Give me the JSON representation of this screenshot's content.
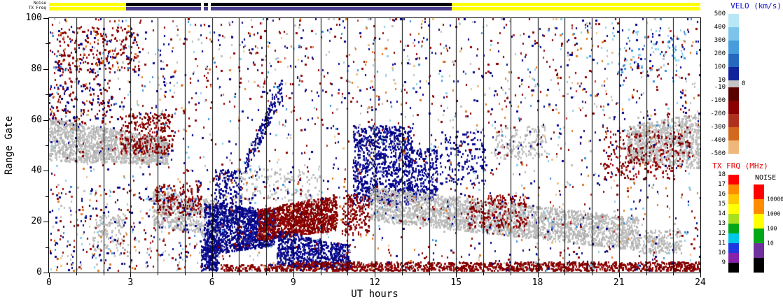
{
  "strip_labels": {
    "noise": "Noise",
    "tx_freq": "TX Freq"
  },
  "axes": {
    "xlabel": "UT hours",
    "ylabel": "Range Gate",
    "x_ticks": [
      "0",
      "3",
      "6",
      "9",
      "12",
      "15",
      "18",
      "21",
      "24"
    ],
    "y_ticks": [
      "0",
      "20",
      "40",
      "60",
      "80",
      "100"
    ]
  },
  "velocity_bar": {
    "title": "VELO (km/s)",
    "title_color": "#1010D0",
    "labels": [
      "500",
      "400",
      "300",
      "200",
      "100",
      "10",
      "-10",
      "-100",
      "-200",
      "-300",
      "-400",
      "-500"
    ],
    "zero_label": "0",
    "grey_index": 5,
    "colors": [
      "#B8E8F5",
      "#7CC4EC",
      "#479CDC",
      "#2468C0",
      "#10239B",
      "#C4C4C4",
      "#5A0000",
      "#8B0000",
      "#B03020",
      "#D2691E",
      "#EFB87A"
    ]
  },
  "freq_bar": {
    "title": "TX FRQ (MHz)",
    "title_color": "#E00000",
    "labels": [
      "18",
      "17",
      "16",
      "15",
      "14",
      "13",
      "12",
      "11",
      "10",
      "9"
    ],
    "colors": [
      "#FF0000",
      "#FF8C00",
      "#FFC800",
      "#FFFF00",
      "#A8E020",
      "#00A818",
      "#00C8E8",
      "#2038E0",
      "#8822AA",
      "#000000"
    ]
  },
  "noise_bar": {
    "title": "NOISE",
    "labels": [
      "10000",
      "1000",
      "100",
      "10"
    ],
    "colors": [
      "#FF0000",
      "#FF8C00",
      "#FFFF00",
      "#00A818",
      "#7030A0",
      "#000000"
    ]
  },
  "chart_data": {
    "type": "scatter",
    "title": "",
    "xlabel": "UT hours",
    "ylabel": "Range Gate",
    "xlim": [
      0,
      24
    ],
    "ylim": [
      0,
      100
    ],
    "x_ticks": [
      0,
      3,
      6,
      9,
      12,
      15,
      18,
      21,
      24
    ],
    "y_ticks": [
      0,
      20,
      40,
      60,
      80,
      100
    ],
    "hour_lines": [
      1,
      2,
      3,
      4,
      5,
      6,
      7,
      8,
      9,
      10,
      11,
      12,
      13,
      14,
      15,
      16,
      17,
      18,
      19,
      20,
      21,
      22,
      23
    ],
    "strips": {
      "noise": [
        {
          "t": [
            0,
            2.85
          ],
          "color": "#FFFF00"
        },
        {
          "t": [
            2.85,
            5.6
          ],
          "color": "#000000"
        },
        {
          "t": [
            5.7,
            5.85
          ],
          "color": "#000000"
        },
        {
          "t": [
            5.95,
            14.85
          ],
          "color": "#000000"
        },
        {
          "t": [
            14.85,
            24
          ],
          "color": "#FFFF00"
        }
      ],
      "tx_freq": [
        {
          "t": [
            0,
            2.85
          ],
          "color": "#FFFF00"
        },
        {
          "t": [
            2.85,
            5.6
          ],
          "color": "#4A3B8F"
        },
        {
          "t": [
            5.7,
            5.85
          ],
          "color": "#4A3B8F"
        },
        {
          "t": [
            5.95,
            14.85
          ],
          "color": "#4A3B8F"
        },
        {
          "t": [
            14.85,
            24
          ],
          "color": "#FFFF00"
        }
      ]
    },
    "palettes": {
      "GREY": [
        [
          "#BEBEBE",
          0.8
        ],
        [
          "#ABABAB",
          0.2
        ]
      ],
      "NAVY": [
        [
          "#00008B",
          0.5
        ],
        [
          "#12127E",
          0.3
        ],
        [
          "#2222A8",
          0.2
        ]
      ],
      "DRED": [
        [
          "#8B0000",
          0.55
        ],
        [
          "#700000",
          0.25
        ],
        [
          "#A51212",
          0.2
        ]
      ],
      "MIX": [
        [
          "#8B0000",
          0.28
        ],
        [
          "#00008B",
          0.24
        ],
        [
          "#BEBEBE",
          0.12
        ],
        [
          "#87CEEB",
          0.08
        ],
        [
          "#3A8FD8",
          0.05
        ],
        [
          "#E07820",
          0.08
        ],
        [
          "#F0C080",
          0.05
        ],
        [
          "#12127E",
          0.06
        ],
        [
          "#C03030",
          0.04
        ]
      ],
      "BLUEMIX": [
        [
          "#87CEEB",
          0.5
        ],
        [
          "#3A8FD8",
          0.3
        ],
        [
          "#00008B",
          0.2
        ]
      ],
      "REDBLUE": [
        [
          "#8B0000",
          0.6
        ],
        [
          "#00008B",
          0.4
        ]
      ],
      "REDTOP": [
        [
          "#8B0000",
          0.7
        ],
        [
          "#00008B",
          0.15
        ],
        [
          "#E07820",
          0.15
        ]
      ]
    },
    "clusters": [
      {
        "name": "ground-scatter-left",
        "seed": 11,
        "n": 1500,
        "t": [
          0,
          4.35
        ],
        "band": {
          "from": [
            43,
            60
          ],
          "to": [
            42,
            52
          ]
        },
        "colors": "GREY"
      },
      {
        "name": "red-top-left",
        "seed": 12,
        "n": 280,
        "t": [
          0.3,
          3.3
        ],
        "g": [
          78,
          96
        ],
        "colors": "REDTOP"
      },
      {
        "name": "red-over-grey",
        "seed": 13,
        "n": 300,
        "t": [
          2.6,
          4.6
        ],
        "g": [
          46,
          62
        ],
        "colors": "DRED"
      },
      {
        "name": "grey-low-left",
        "seed": 14,
        "n": 120,
        "t": [
          1.6,
          2.8
        ],
        "g": [
          8,
          22
        ],
        "colors": "GREY"
      },
      {
        "name": "grey-mid-left",
        "seed": 15,
        "n": 620,
        "t": [
          3.8,
          6.3
        ],
        "band": {
          "from": [
            18,
            32
          ],
          "to": [
            13,
            27
          ]
        },
        "colors": "GREY"
      },
      {
        "name": "red-specks-4-5h",
        "seed": 16,
        "n": 160,
        "t": [
          3.9,
          5.6
        ],
        "g": [
          22,
          34
        ],
        "colors": "DRED"
      },
      {
        "name": "navy-main-blob",
        "seed": 17,
        "n": 1400,
        "t": [
          5.7,
          8.3
        ],
        "band": {
          "from": [
            6,
            27
          ],
          "to": [
            10,
            24
          ]
        },
        "colors": "NAVY"
      },
      {
        "name": "navy-drop-6h",
        "seed": 18,
        "n": 200,
        "t": [
          5.6,
          6.2
        ],
        "g": [
          0,
          10
        ],
        "colors": "NAVY"
      },
      {
        "name": "navy-65h-upper",
        "seed": 40,
        "n": 140,
        "t": [
          6.1,
          7.1
        ],
        "g": [
          26,
          40
        ],
        "colors": "NAVY"
      },
      {
        "name": "red-main-blob",
        "seed": 19,
        "n": 1250,
        "t": [
          7.7,
          10.6
        ],
        "band": {
          "from": [
            12,
            24
          ],
          "to": [
            16,
            30
          ]
        },
        "colors": "DRED"
      },
      {
        "name": "navy-low-9-11h",
        "seed": 20,
        "n": 700,
        "t": [
          8.4,
          11.1
        ],
        "band": {
          "from": [
            2,
            16
          ],
          "to": [
            0,
            10
          ]
        },
        "colors": "NAVY"
      },
      {
        "name": "navy-diagonal-8h",
        "seed": 21,
        "n": 170,
        "t": [
          7.2,
          8.6
        ],
        "band": {
          "from": [
            38,
            44
          ],
          "to": [
            68,
            78
          ]
        },
        "colors": "NAVY"
      },
      {
        "name": "navy-columns-12h",
        "seed": 22,
        "n": 950,
        "t": [
          11.2,
          13.4
        ],
        "g": [
          26,
          57
        ],
        "colors": "NAVY"
      },
      {
        "name": "navy-13-14h",
        "seed": 23,
        "n": 260,
        "t": [
          13.2,
          14.3
        ],
        "g": [
          28,
          48
        ],
        "colors": "NAVY"
      },
      {
        "name": "red-bottom-band",
        "seed": 24,
        "n": 1250,
        "t": [
          9,
          24
        ],
        "g": [
          0,
          3.5
        ],
        "colors": "DRED"
      },
      {
        "name": "red-bottom-early",
        "seed": 25,
        "n": 150,
        "t": [
          6.3,
          9
        ],
        "g": [
          0,
          2.5
        ],
        "colors": "DRED"
      },
      {
        "name": "ground-scatter-band",
        "seed": 26,
        "n": 2700,
        "t": [
          11.8,
          21.7
        ],
        "band": {
          "from": [
            20,
            33
          ],
          "to": [
            8,
            21
          ]
        },
        "colors": "GREY"
      },
      {
        "name": "grey-tail-22h",
        "seed": 27,
        "n": 200,
        "t": [
          21.7,
          23.3
        ],
        "g": [
          7,
          16
        ],
        "colors": "GREY"
      },
      {
        "name": "ground-scatter-right",
        "seed": 28,
        "n": 950,
        "t": [
          21.3,
          24
        ],
        "band": {
          "from": [
            43,
            57
          ],
          "to": [
            40,
            62
          ]
        },
        "colors": "GREY"
      },
      {
        "name": "red-right-22h",
        "seed": 29,
        "n": 260,
        "t": [
          20.4,
          23.6
        ],
        "g": [
          36,
          55
        ],
        "colors": "DRED"
      },
      {
        "name": "grey-17h",
        "seed": 30,
        "n": 180,
        "t": [
          16.4,
          18.3
        ],
        "g": [
          44,
          57
        ],
        "colors": "GREY"
      },
      {
        "name": "navy-15h",
        "seed": 31,
        "n": 150,
        "t": [
          14.4,
          16.1
        ],
        "g": [
          34,
          55
        ],
        "colors": "NAVY"
      },
      {
        "name": "grey-9h-upper",
        "seed": 32,
        "n": 140,
        "t": [
          7,
          10
        ],
        "g": [
          27,
          40
        ],
        "colors": "GREY"
      },
      {
        "name": "red-16h",
        "seed": 33,
        "n": 200,
        "t": [
          15.4,
          17.6
        ],
        "g": [
          17,
          30
        ],
        "colors": "DRED"
      },
      {
        "name": "navy-left-high",
        "seed": 36,
        "n": 150,
        "t": [
          0,
          2.3
        ],
        "g": [
          58,
          76
        ],
        "colors": "REDBLUE"
      },
      {
        "name": "red-11h",
        "seed": 37,
        "n": 170,
        "t": [
          10.8,
          11.8
        ],
        "g": [
          14,
          30
        ],
        "colors": "DRED"
      },
      {
        "name": "lightblue-22h-high",
        "seed": 38,
        "n": 90,
        "t": [
          21,
          23.5
        ],
        "g": [
          78,
          95
        ],
        "colors": "BLUEMIX"
      },
      {
        "name": "mixed-low-left",
        "seed": 39,
        "n": 240,
        "t": [
          0,
          5.6
        ],
        "g": [
          0,
          34
        ],
        "colors": "MIX"
      },
      {
        "name": "scatter-noise",
        "seed": 34,
        "n": 2100,
        "t": [
          0,
          24
        ],
        "g": [
          0,
          100
        ],
        "colors": "MIX"
      },
      {
        "name": "scatter-noise-high",
        "seed": 35,
        "n": 330,
        "t": [
          0,
          24
        ],
        "g": [
          60,
          100
        ],
        "colors": "MIX"
      }
    ]
  }
}
